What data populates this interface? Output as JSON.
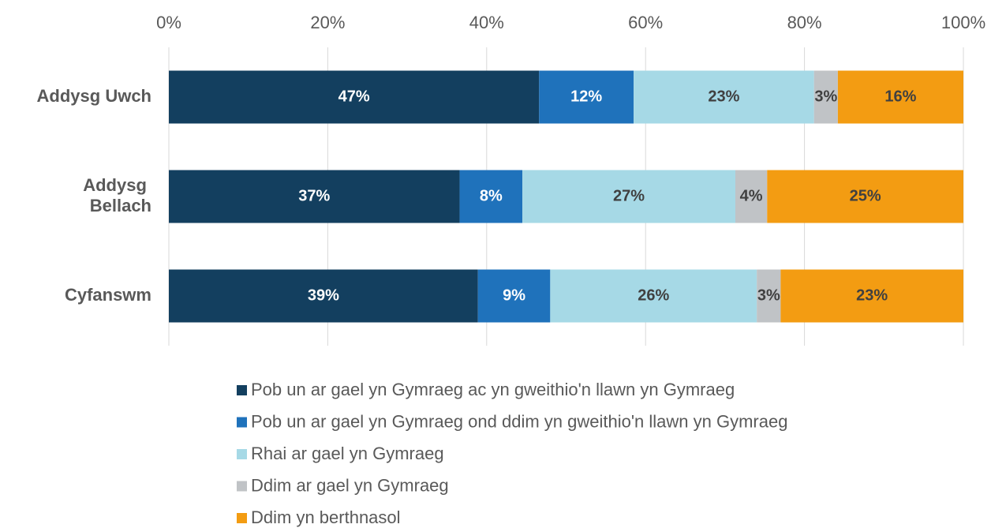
{
  "chart_data": {
    "type": "stacked_barh",
    "categories": [
      "Addysg Uwch",
      "Addysg Bellach",
      "Cyfanswm"
    ],
    "series": [
      {
        "name": "Pob un ar gael yn Gymraeg ac yn gweithio'n llawn yn Gymraeg",
        "color": "#133f5f",
        "label_color": "#ffffff",
        "values": [
          46.6,
          36.6,
          38.9
        ],
        "value_labels": [
          "47%",
          "37%",
          "39%"
        ]
      },
      {
        "name": "Pob un ar gael yn Gymraeg ond ddim yn gweithio'n llawn yn Gymraeg",
        "color": "#1f72bb",
        "label_color": "#ffffff",
        "values": [
          11.9,
          7.9,
          9.1
        ],
        "value_labels": [
          "12%",
          "8%",
          "9%"
        ]
      },
      {
        "name": "Rhai ar gael yn Gymraeg",
        "color": "#a6d9e6",
        "label_color": "#404040",
        "values": [
          22.7,
          26.8,
          26.0
        ],
        "value_labels": [
          "23%",
          "27%",
          "26%"
        ]
      },
      {
        "name": "Ddim ar gael yn Gymraeg",
        "color": "#c0c3c6",
        "label_color": "#404040",
        "values": [
          3.0,
          4.0,
          3.0
        ],
        "value_labels": [
          "3%",
          "4%",
          "3%"
        ]
      },
      {
        "name": "Ddim yn berthnasol",
        "color": "#f39c12",
        "label_color": "#404040",
        "values": [
          15.8,
          24.7,
          23.0
        ],
        "value_labels": [
          "16%",
          "25%",
          "23%"
        ]
      }
    ],
    "xlim": [
      0,
      100
    ],
    "xticks": [
      {
        "value": 0,
        "label": "0%"
      },
      {
        "value": 20,
        "label": "20%"
      },
      {
        "value": 40,
        "label": "40%"
      },
      {
        "value": 60,
        "label": "60%"
      },
      {
        "value": 80,
        "label": "80%"
      },
      {
        "value": 100,
        "label": "100%"
      }
    ],
    "grid": true,
    "legend": "bottom"
  }
}
